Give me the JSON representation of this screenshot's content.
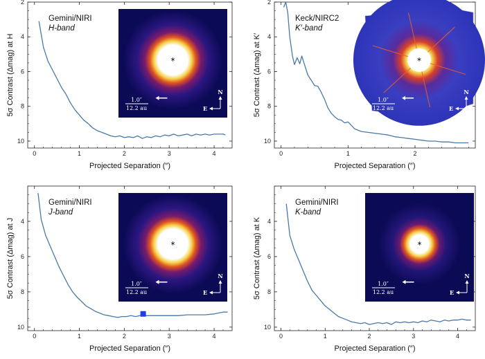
{
  "chart_data": [
    {
      "type": "line",
      "instrument": "Gemini/NIRI",
      "band": "H-band",
      "xlabel": "Projected Separation (″)",
      "ylabel": "5σ Contrast (Δmag) at H",
      "xlim": [
        -0.15,
        4.4
      ],
      "ylim": [
        10.4,
        2.0
      ],
      "xticks": [
        "0",
        "1",
        "2",
        "3",
        "4"
      ],
      "yticks": [
        "2",
        "4",
        "6",
        "8",
        "10"
      ],
      "x": [
        0.1,
        0.2,
        0.3,
        0.4,
        0.5,
        0.6,
        0.7,
        0.8,
        0.9,
        1.0,
        1.1,
        1.2,
        1.3,
        1.4,
        1.5,
        1.6,
        1.7,
        1.8,
        1.9,
        2.0,
        2.1,
        2.2,
        2.3,
        2.4,
        2.5,
        2.6,
        2.7,
        2.8,
        2.9,
        3.0,
        3.1,
        3.2,
        3.3,
        3.4,
        3.5,
        3.6,
        3.7,
        3.8,
        3.9,
        4.0,
        4.1,
        4.2,
        4.25
      ],
      "y": [
        3.1,
        4.6,
        5.4,
        5.9,
        6.4,
        6.9,
        7.3,
        7.8,
        8.2,
        8.5,
        8.8,
        9.0,
        9.25,
        9.4,
        9.5,
        9.6,
        9.7,
        9.75,
        9.7,
        9.8,
        9.75,
        9.8,
        9.7,
        9.85,
        9.75,
        9.8,
        9.7,
        9.75,
        9.65,
        9.7,
        9.6,
        9.7,
        9.65,
        9.6,
        9.7,
        9.6,
        9.65,
        9.6,
        9.65,
        9.6,
        9.6,
        9.6,
        9.65
      ],
      "image_scale": "1.0″",
      "image_scale_au": "12.2 au"
    },
    {
      "type": "line",
      "instrument": "Keck/NIRC2",
      "band": "K′-band",
      "xlabel": "Projected Separation (″)",
      "ylabel": "5σ Contrast (Δmag) at K′",
      "xlim": [
        -0.1,
        2.9
      ],
      "ylim": [
        10.4,
        2.0
      ],
      "xticks": [
        "0",
        "1",
        "2"
      ],
      "yticks": [
        "2",
        "4",
        "6",
        "8",
        "10"
      ],
      "x": [
        0.04,
        0.07,
        0.1,
        0.13,
        0.17,
        0.2,
        0.24,
        0.28,
        0.31,
        0.35,
        0.4,
        0.45,
        0.5,
        0.55,
        0.6,
        0.65,
        0.7,
        0.75,
        0.8,
        0.85,
        0.9,
        0.95,
        1.0,
        1.05,
        1.1,
        1.2,
        1.3,
        1.4,
        1.5,
        1.6,
        1.7,
        1.8,
        1.9,
        2.0,
        2.1,
        2.2,
        2.3,
        2.4,
        2.5,
        2.6,
        2.7,
        2.8
      ],
      "y": [
        2.3,
        2.0,
        2.6,
        4.0,
        5.1,
        5.6,
        5.2,
        5.55,
        5.1,
        5.6,
        6.2,
        6.5,
        6.8,
        6.85,
        7.2,
        7.6,
        8.1,
        8.4,
        8.6,
        8.75,
        8.8,
        8.95,
        8.9,
        9.1,
        9.3,
        9.45,
        9.5,
        9.55,
        9.6,
        9.65,
        9.75,
        9.8,
        9.85,
        9.9,
        9.95,
        10.0,
        10.0,
        10.05,
        10.05,
        10.1,
        10.1,
        10.1
      ],
      "image_scale": "1.0″",
      "image_scale_au": "12.2 au"
    },
    {
      "type": "line",
      "instrument": "Gemini/NIRI",
      "band": "J-band",
      "xlabel": "Projected Separation (″)",
      "ylabel": "5σ Contrast (Δmag) at J",
      "xlim": [
        -0.15,
        4.4
      ],
      "ylim": [
        10.2,
        2.0
      ],
      "xticks": [
        "0",
        "1",
        "2",
        "3",
        "4"
      ],
      "yticks": [
        "4",
        "6",
        "8",
        "10"
      ],
      "x": [
        0.08,
        0.15,
        0.25,
        0.35,
        0.45,
        0.55,
        0.65,
        0.75,
        0.85,
        0.95,
        1.05,
        1.15,
        1.25,
        1.35,
        1.45,
        1.55,
        1.65,
        1.75,
        1.85,
        1.95,
        2.05,
        2.15,
        2.25,
        2.35,
        2.45,
        2.6,
        2.8,
        3.0,
        3.2,
        3.4,
        3.6,
        3.8,
        4.0,
        4.1,
        4.2,
        4.3
      ],
      "y": [
        2.4,
        3.9,
        4.8,
        5.4,
        6.0,
        6.6,
        7.1,
        7.6,
        8.0,
        8.3,
        8.55,
        8.8,
        8.95,
        9.1,
        9.2,
        9.3,
        9.35,
        9.4,
        9.45,
        9.4,
        9.4,
        9.35,
        9.4,
        9.35,
        9.35,
        9.35,
        9.35,
        9.35,
        9.35,
        9.3,
        9.3,
        9.3,
        9.25,
        9.2,
        9.15,
        9.15
      ],
      "marker": {
        "x": 2.42,
        "y": 9.25,
        "shape": "square",
        "color": "#1f3ee6"
      },
      "image_scale": "1.0″",
      "image_scale_au": "12.2 au"
    },
    {
      "type": "line",
      "instrument": "Gemini/NIRI",
      "band": "K-band",
      "xlabel": "Projected Separation (″)",
      "ylabel": "5σ Contrast (Δmag) at K",
      "xlim": [
        -0.15,
        4.4
      ],
      "ylim": [
        10.2,
        2.0
      ],
      "xticks": [
        "0",
        "1",
        "2",
        "3",
        "4"
      ],
      "yticks": [
        "4",
        "6",
        "8",
        "10"
      ],
      "x": [
        0.12,
        0.2,
        0.3,
        0.4,
        0.5,
        0.6,
        0.7,
        0.8,
        0.9,
        1.0,
        1.1,
        1.2,
        1.3,
        1.4,
        1.5,
        1.6,
        1.7,
        1.8,
        1.9,
        2.0,
        2.1,
        2.2,
        2.3,
        2.4,
        2.5,
        2.6,
        2.7,
        2.8,
        2.9,
        3.0,
        3.1,
        3.2,
        3.3,
        3.4,
        3.5,
        3.6,
        3.7,
        3.8,
        3.9,
        4.0,
        4.1,
        4.2,
        4.3
      ],
      "y": [
        3.0,
        4.8,
        5.6,
        6.2,
        6.8,
        7.4,
        7.9,
        8.2,
        8.5,
        8.8,
        9.0,
        9.2,
        9.4,
        9.5,
        9.6,
        9.7,
        9.75,
        9.8,
        9.75,
        9.85,
        9.8,
        9.75,
        9.8,
        9.75,
        9.85,
        9.7,
        9.75,
        9.7,
        9.75,
        9.7,
        9.75,
        9.65,
        9.7,
        9.6,
        9.65,
        9.7,
        9.6,
        9.65,
        9.6,
        9.6,
        9.55,
        9.6,
        9.6
      ],
      "image_scale": "1.0″",
      "image_scale_au": "12.2 au"
    }
  ],
  "colors": {
    "curve": "#4a78a8",
    "axis": "#222222",
    "image_bg": "#0b0a55",
    "psf_core": "#ffffff",
    "psf_ring": "#f2c23a",
    "psf_halo": "#d8321e"
  },
  "compass": {
    "north": "N",
    "east": "E"
  },
  "star_marker": "*"
}
